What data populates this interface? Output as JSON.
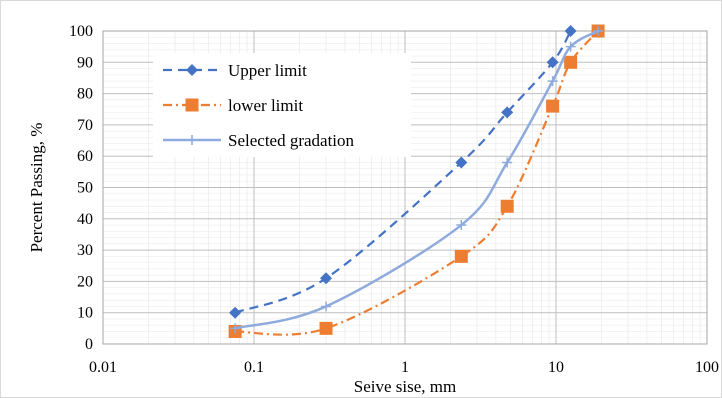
{
  "chart_data": {
    "type": "scatter",
    "x_scale": "log",
    "xlim": [
      0.01,
      100
    ],
    "ylim": [
      0,
      100
    ],
    "xlabel": "Seive sise, mm",
    "ylabel": "Percent Passing, %",
    "x_ticks": [
      0.01,
      0.1,
      1,
      10,
      100
    ],
    "x_tick_labels": [
      "0.01",
      "0.1",
      "1",
      "10",
      "100"
    ],
    "y_ticks": [
      0,
      10,
      20,
      30,
      40,
      50,
      60,
      70,
      80,
      90,
      100
    ],
    "y_tick_labels": [
      "0",
      "10",
      "20",
      "30",
      "40",
      "50",
      "60",
      "70",
      "80",
      "90",
      "100"
    ],
    "grid": "major and minor, both axes",
    "legend_position": "top-left",
    "series": [
      {
        "name": "Upper limit",
        "color": "#4472c4",
        "line": "dashed",
        "marker": "diamond",
        "x": [
          0.075,
          0.3,
          2.36,
          4.75,
          9.5,
          12.5
        ],
        "y": [
          10,
          21,
          58,
          74,
          90,
          100
        ]
      },
      {
        "name": "lower limit",
        "color": "#ed7d31",
        "line": "dash-dot",
        "marker": "square",
        "x": [
          0.075,
          0.3,
          2.36,
          4.75,
          9.5,
          12.5,
          19
        ],
        "y": [
          4,
          5,
          28,
          44,
          76,
          90,
          100
        ]
      },
      {
        "name": "Selected gradation",
        "color": "#8faadc",
        "line": "solid",
        "marker": "plus",
        "x": [
          0.075,
          0.3,
          2.36,
          4.75,
          9.5,
          12.5,
          19
        ],
        "y": [
          5,
          12,
          38,
          58,
          84,
          95,
          100
        ]
      }
    ]
  }
}
